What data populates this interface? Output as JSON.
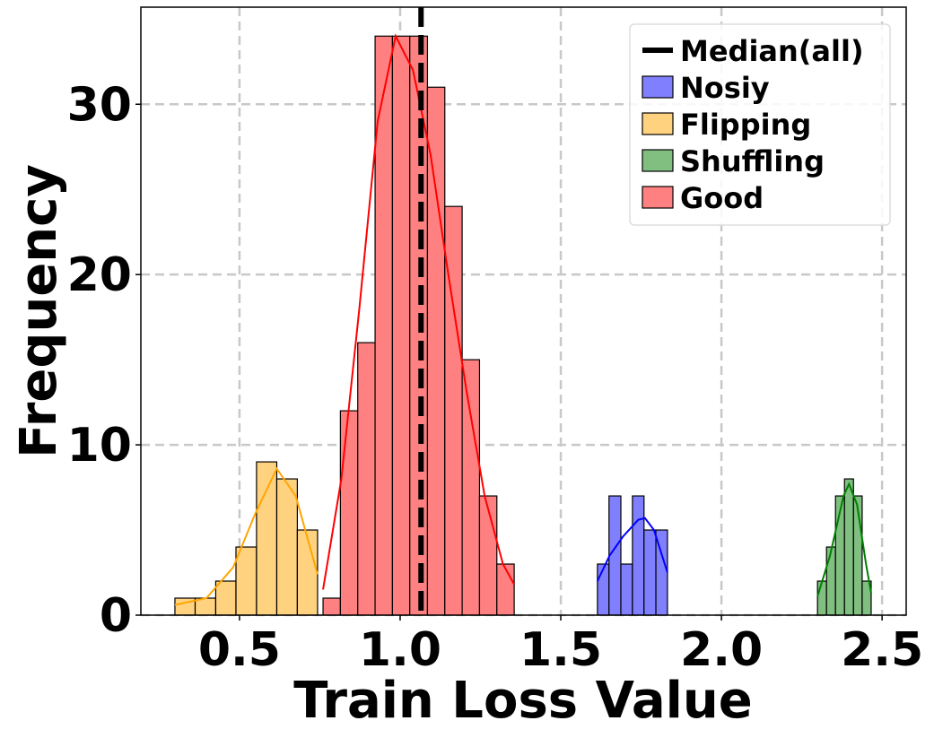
{
  "chart_data": {
    "type": "histogram",
    "xlabel": "Train Loss Value",
    "ylabel": "Frequency",
    "xlim": [
      0.193,
      2.575
    ],
    "ylim": [
      0,
      35.7
    ],
    "xticks": [
      0.5,
      {
        "value": 1.0,
        "label": "1.0"
      },
      1.5,
      {
        "value": 2.0,
        "label": "2.0"
      },
      2.5
    ],
    "yticks": [
      0,
      10,
      20,
      30
    ],
    "grid": true,
    "legend": "upper right",
    "median": {
      "name": "Median(all)",
      "value": 1.065,
      "color": "#000000"
    },
    "series": [
      {
        "name": "Nosiy",
        "color": "#8080ff",
        "line_color": "#0000ff",
        "bins": [
          1.614,
          1.65,
          1.687,
          1.723,
          1.759,
          1.796,
          1.832
        ],
        "values": [
          3,
          7,
          3,
          7,
          5,
          5
        ],
        "kde_x": [
          1.614,
          1.652,
          1.693,
          1.741,
          1.762,
          1.79,
          1.832
        ],
        "kde_y": [
          2,
          3.5,
          4.6,
          5.6,
          5.7,
          5,
          2.5
        ]
      },
      {
        "name": "Flipping",
        "color": "#ffd280",
        "line_color": "#ffa500",
        "bins": [
          0.299,
          0.362,
          0.426,
          0.489,
          0.553,
          0.616,
          0.68,
          0.743
        ],
        "values": [
          1,
          1,
          2,
          4,
          9,
          8,
          5
        ],
        "kde_x": [
          0.299,
          0.397,
          0.48,
          0.55,
          0.616,
          0.675,
          0.743
        ],
        "kde_y": [
          0.6,
          1,
          2.8,
          6,
          8.6,
          7,
          2.4
        ]
      },
      {
        "name": "Shuffling",
        "color": "#80bf80",
        "line_color": "#008000",
        "bins": [
          2.299,
          2.327,
          2.355,
          2.383,
          2.411,
          2.438,
          2.466
        ],
        "values": [
          2,
          4,
          7,
          8,
          7,
          2
        ],
        "kde_x": [
          2.299,
          2.338,
          2.38,
          2.397,
          2.422,
          2.45,
          2.466
        ],
        "kde_y": [
          1.1,
          3.5,
          7,
          7.7,
          6.5,
          3,
          1.3
        ]
      },
      {
        "name": "Good",
        "color": "#ff8080",
        "line_color": "#ff0000",
        "bins": [
          0.76,
          0.814,
          0.868,
          0.922,
          0.976,
          1.03,
          1.085,
          1.139,
          1.193,
          1.247,
          1.301,
          1.355
        ],
        "values": [
          1,
          12,
          16,
          34,
          34,
          34,
          31,
          24,
          15,
          7,
          3
        ],
        "kde_x": [
          0.76,
          0.817,
          0.873,
          0.93,
          0.986,
          1.04,
          1.095,
          1.15,
          1.208,
          1.263,
          1.32,
          1.355
        ],
        "kde_y": [
          1.5,
          8,
          18,
          29,
          34,
          32,
          27,
          20,
          13,
          7,
          3,
          1.8
        ]
      }
    ]
  }
}
